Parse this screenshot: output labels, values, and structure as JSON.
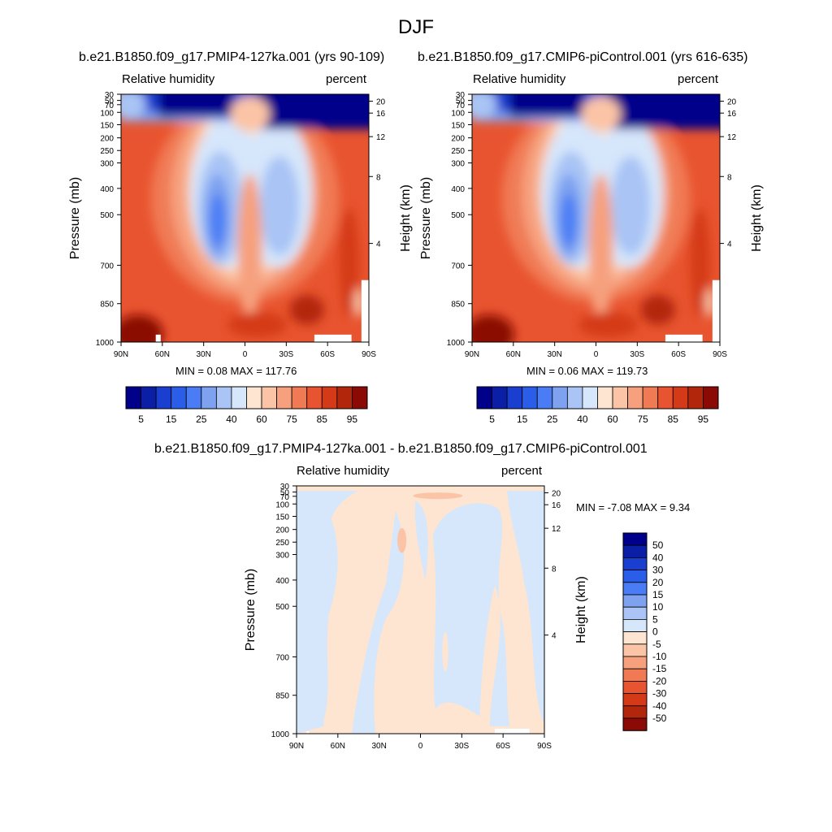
{
  "figure": {
    "title": "DJF"
  },
  "palettes": {
    "abs": [
      "#00008b",
      "#0a1fa6",
      "#1a3fd0",
      "#2a5ee8",
      "#4a7df5",
      "#7ea2f0",
      "#a9c4f5",
      "#d6e6fb",
      "#fde5d2",
      "#fbc4a6",
      "#f6a07e",
      "#f07a54",
      "#e8542f",
      "#d43a18",
      "#b2270c",
      "#8b0a05"
    ],
    "diff": [
      "#00008b",
      "#0a1fa6",
      "#1a3fd0",
      "#2a5ee8",
      "#4a7df5",
      "#7ea2f0",
      "#a9c4f5",
      "#d6e6fb",
      "#fde5d2",
      "#fbc4a6",
      "#f6a07e",
      "#f07a54",
      "#e8542f",
      "#d43a18",
      "#b2270c",
      "#8b0a05"
    ]
  },
  "chart_data": [
    {
      "type": "heatmap",
      "title": "b.e21.B1850.f09_g17.PMIP4-127ka.001 (yrs 90-109)",
      "subtitle_left": "Relative humidity",
      "subtitle_right": "percent",
      "ylabel": "Pressure (mb)",
      "ylabel_right": "Height (km)",
      "x_ticks": [
        "90N",
        "60N",
        "30N",
        "0",
        "30S",
        "60S",
        "90S"
      ],
      "y_ticks": [
        "30",
        "50",
        "70",
        "100",
        "150",
        "200",
        "250",
        "300",
        "400",
        "500",
        "700",
        "850",
        "1000"
      ],
      "y_right_ticks": [
        "20",
        "16",
        "12",
        "8",
        "4"
      ],
      "min_max": "MIN =   0.08  MAX = 117.76",
      "colorbar_labels": [
        "5",
        "15",
        "25",
        "40",
        "60",
        "75",
        "85",
        "95"
      ],
      "ylim": [
        1000,
        30
      ]
    },
    {
      "type": "heatmap",
      "title": "b.e21.B1850.f09_g17.CMIP6-piControl.001 (yrs 616-635)",
      "subtitle_left": "Relative humidity",
      "subtitle_right": "percent",
      "ylabel": "Pressure (mb)",
      "ylabel_right": "Height (km)",
      "x_ticks": [
        "90N",
        "60N",
        "30N",
        "0",
        "30S",
        "60S",
        "90S"
      ],
      "y_ticks": [
        "30",
        "50",
        "70",
        "100",
        "150",
        "200",
        "250",
        "300",
        "400",
        "500",
        "700",
        "850",
        "1000"
      ],
      "y_right_ticks": [
        "20",
        "16",
        "12",
        "8",
        "4"
      ],
      "min_max": "MIN =   0.06  MAX = 119.73",
      "colorbar_labels": [
        "5",
        "15",
        "25",
        "40",
        "60",
        "75",
        "85",
        "95"
      ],
      "ylim": [
        1000,
        30
      ]
    },
    {
      "type": "heatmap",
      "title": "b.e21.B1850.f09_g17.PMIP4-127ka.001 - b.e21.B1850.f09_g17.CMIP6-piControl.001",
      "subtitle_left": "Relative humidity",
      "subtitle_right": "percent",
      "ylabel": "Pressure (mb)",
      "ylabel_right": "Height (km)",
      "x_ticks": [
        "90N",
        "60N",
        "30N",
        "0",
        "30S",
        "60S",
        "90S"
      ],
      "y_ticks": [
        "30",
        "50",
        "70",
        "100",
        "150",
        "200",
        "250",
        "300",
        "400",
        "500",
        "700",
        "850",
        "1000"
      ],
      "y_right_ticks": [
        "20",
        "16",
        "12",
        "8",
        "4"
      ],
      "min_max": "MIN =  -7.08  MAX =   9.34",
      "colorbar_labels": [
        "50",
        "40",
        "30",
        "20",
        "15",
        "10",
        "5",
        "0",
        "-5",
        "-10",
        "-15",
        "-20",
        "-30",
        "-40",
        "-50"
      ],
      "ylim": [
        1000,
        30
      ]
    }
  ]
}
